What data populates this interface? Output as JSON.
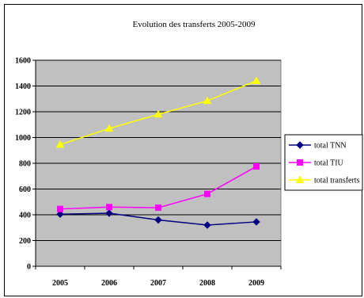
{
  "chart_data": {
    "type": "line",
    "title": "Evolution des transferts 2005-2009",
    "xlabel": "",
    "ylabel": "",
    "categories": [
      "2005",
      "2006",
      "2007",
      "2008",
      "2009"
    ],
    "ylim": [
      0,
      1600
    ],
    "yticks": [
      0,
      200,
      400,
      600,
      800,
      1000,
      1200,
      1400,
      1600
    ],
    "grid": true,
    "legend_position": "right",
    "series": [
      {
        "name": "total TNN",
        "values": [
          405,
          412,
          360,
          320,
          345
        ],
        "color": "#000080",
        "marker": "diamond"
      },
      {
        "name": "total TIU",
        "values": [
          445,
          460,
          455,
          562,
          775
        ],
        "color": "#ff00ff",
        "marker": "square"
      },
      {
        "name": "total transferts",
        "values": [
          945,
          1070,
          1180,
          1285,
          1440
        ],
        "color": "#ffff00",
        "marker": "triangle"
      }
    ],
    "plot_background": "#c0c0c0"
  }
}
